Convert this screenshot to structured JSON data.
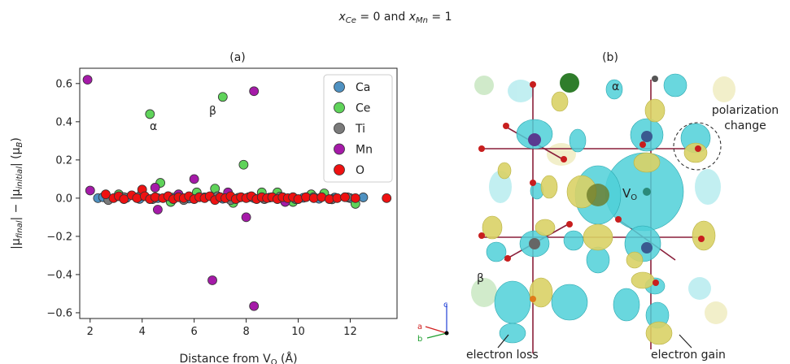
{
  "figure": {
    "title_prefix": "x",
    "title_sub1": "Ce",
    "title_eq1": " = 0 and ",
    "title_prefix2": "x",
    "title_sub2": "Mn",
    "title_eq2": " = 1"
  },
  "panel_b": {
    "label": "(b)",
    "vo_label": "V",
    "vo_sub": "O",
    "alpha_label": "α",
    "beta_label": "β",
    "polarization_line1": "polarization",
    "polarization_line2": "change",
    "electron_loss": "electron loss",
    "electron_gain": "electron gain",
    "axis_a": "a",
    "axis_b": "b",
    "axis_c": "c",
    "colors": {
      "cyan": "#4fd0d8",
      "yellow": "#d9d266",
      "bond": "#8a1f3a",
      "oxygen": "#c81e1e"
    }
  },
  "chart_data": {
    "type": "scatter",
    "panel_label": "(a)",
    "xlabel_text": "Distance from V",
    "xlabel_sub": "O",
    "xlabel_unit": " (Å)",
    "ylabel_parts": [
      "|μ",
      "final",
      "| − |μ",
      "initial",
      "| (μ",
      "B",
      ")"
    ],
    "xlim": [
      1.6,
      13.8
    ],
    "ylim": [
      -0.63,
      0.68
    ],
    "xticks": [
      2,
      4,
      6,
      8,
      10,
      12
    ],
    "yticks": [
      -0.6,
      -0.4,
      -0.2,
      0.0,
      0.2,
      0.4,
      0.6
    ],
    "ytick_labels": [
      "−0.6",
      "−0.4",
      "−0.2",
      "0.0",
      "0.2",
      "0.4",
      "0.6"
    ],
    "legend_position": "top-right",
    "annotations": [
      {
        "text": "α",
        "x": 4.0,
        "y": 0.4
      },
      {
        "text": "β",
        "x": 6.7,
        "y": 0.48
      }
    ],
    "series": [
      {
        "name": "Ca",
        "color": "#4f91c1",
        "points": [
          [
            2.3,
            0.0
          ],
          [
            2.5,
            0.005
          ],
          [
            3.4,
            0.002
          ],
          [
            3.9,
            -0.004
          ],
          [
            4.6,
            0.0
          ],
          [
            5.2,
            0.003
          ],
          [
            5.8,
            -0.002
          ],
          [
            6.4,
            0.004
          ],
          [
            7.1,
            -0.003
          ],
          [
            7.7,
            0.002
          ],
          [
            8.3,
            0.0
          ],
          [
            8.9,
            0.003
          ],
          [
            9.6,
            -0.002
          ],
          [
            10.2,
            0.002
          ],
          [
            10.8,
            -0.003
          ],
          [
            11.4,
            0.003
          ],
          [
            12.0,
            0.0
          ],
          [
            12.5,
            0.004
          ]
        ]
      },
      {
        "name": "Ce",
        "color": "#5fd35a",
        "points": [
          [
            4.3,
            0.44
          ],
          [
            7.1,
            0.53
          ],
          [
            7.9,
            0.175
          ],
          [
            4.7,
            0.08
          ],
          [
            5.1,
            -0.02
          ],
          [
            6.1,
            0.03
          ],
          [
            7.5,
            -0.025
          ],
          [
            8.6,
            0.03
          ],
          [
            9.2,
            0.03
          ],
          [
            9.8,
            -0.02
          ],
          [
            10.5,
            0.02
          ],
          [
            11.0,
            0.025
          ],
          [
            12.2,
            -0.03
          ],
          [
            6.8,
            0.05
          ],
          [
            3.1,
            0.02
          ]
        ]
      },
      {
        "name": "Ti",
        "color": "#7a7a7a",
        "points": [
          [
            2.7,
            -0.01
          ],
          [
            3.3,
            0.005
          ],
          [
            3.9,
            0.01
          ],
          [
            4.4,
            -0.005
          ],
          [
            5.0,
            0.01
          ],
          [
            5.6,
            -0.01
          ],
          [
            6.2,
            0.005
          ],
          [
            6.9,
            0.01
          ],
          [
            7.4,
            -0.01
          ],
          [
            8.1,
            0.005
          ],
          [
            8.7,
            -0.005
          ],
          [
            9.3,
            0.008
          ],
          [
            9.9,
            -0.005
          ],
          [
            10.6,
            0.006
          ],
          [
            11.3,
            -0.006
          ],
          [
            11.9,
            0.004
          ]
        ]
      },
      {
        "name": "Mn",
        "color": "#a51aa8",
        "points": [
          [
            1.9,
            0.62
          ],
          [
            8.3,
            0.56
          ],
          [
            2.0,
            0.04
          ],
          [
            4.5,
            0.055
          ],
          [
            4.6,
            -0.06
          ],
          [
            6.0,
            0.1
          ],
          [
            6.7,
            -0.43
          ],
          [
            8.3,
            -0.565
          ],
          [
            8.0,
            -0.1
          ],
          [
            7.3,
            0.03
          ],
          [
            5.4,
            0.02
          ],
          [
            9.5,
            -0.02
          ]
        ]
      },
      {
        "name": "O",
        "color": "#ee1111",
        "points": [
          [
            2.6,
            0.02
          ],
          [
            2.9,
            0.0
          ],
          [
            3.1,
            0.01
          ],
          [
            3.3,
            -0.005
          ],
          [
            3.6,
            0.015
          ],
          [
            3.8,
            0.0
          ],
          [
            4.0,
            0.045
          ],
          [
            4.1,
            0.01
          ],
          [
            4.3,
            -0.005
          ],
          [
            4.5,
            0.005
          ],
          [
            4.8,
            0.0
          ],
          [
            5.0,
            0.01
          ],
          [
            5.2,
            -0.005
          ],
          [
            5.4,
            0.005
          ],
          [
            5.6,
            0.0
          ],
          [
            5.8,
            0.01
          ],
          [
            6.0,
            -0.005
          ],
          [
            6.2,
            0.005
          ],
          [
            6.4,
            0.0
          ],
          [
            6.6,
            0.01
          ],
          [
            6.8,
            -0.01
          ],
          [
            7.0,
            0.005
          ],
          [
            7.2,
            0.0
          ],
          [
            7.4,
            0.01
          ],
          [
            7.6,
            -0.005
          ],
          [
            7.8,
            0.005
          ],
          [
            8.0,
            0.0
          ],
          [
            8.2,
            0.01
          ],
          [
            8.4,
            -0.005
          ],
          [
            8.6,
            0.005
          ],
          [
            8.8,
            0.0
          ],
          [
            9.0,
            0.005
          ],
          [
            9.2,
            -0.005
          ],
          [
            9.4,
            0.005
          ],
          [
            9.6,
            0.0
          ],
          [
            9.8,
            0.005
          ],
          [
            10.0,
            -0.005
          ],
          [
            10.3,
            0.005
          ],
          [
            10.6,
            0.0
          ],
          [
            10.9,
            0.005
          ],
          [
            11.2,
            -0.005
          ],
          [
            11.5,
            0.0
          ],
          [
            11.8,
            0.005
          ],
          [
            12.2,
            0.0
          ],
          [
            13.4,
            0.0
          ]
        ]
      }
    ]
  }
}
